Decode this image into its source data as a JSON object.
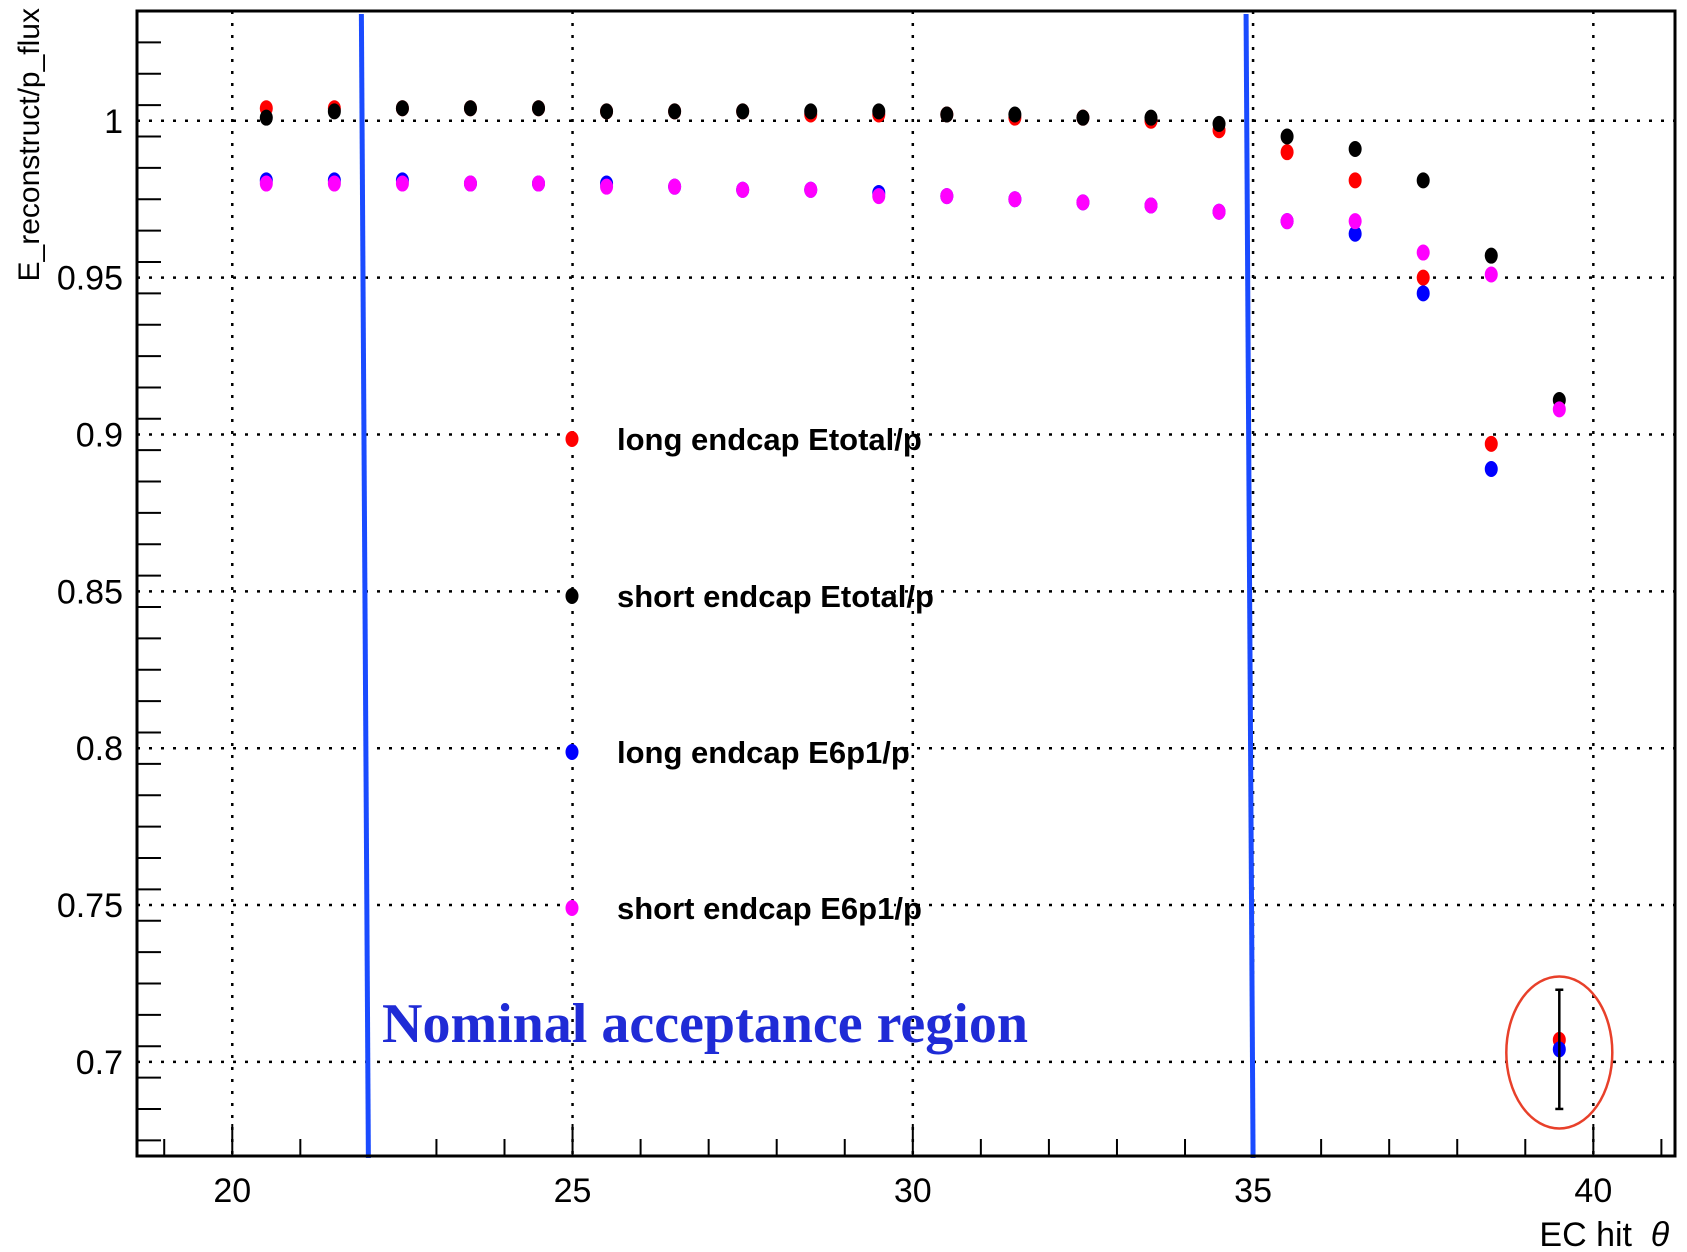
{
  "chart_data": {
    "type": "scatter",
    "title": "",
    "xlabel": "EC hit",
    "xlabel_symbol": "θ",
    "ylabel": "E_reconstruct/p_flux",
    "xlim": [
      18.6,
      41.2
    ],
    "ylim": [
      0.67,
      1.035
    ],
    "x_ticks": [
      "20",
      "25",
      "30",
      "35",
      "40"
    ],
    "y_ticks": [
      "0.7",
      "0.75",
      "0.8",
      "0.85",
      "0.9",
      "0.95",
      "1"
    ],
    "grid": true,
    "legend_position": "center",
    "series": [
      {
        "name": "long endcap Etotal/p",
        "color": "#ff0000",
        "x": [
          20.5,
          21.5,
          22.5,
          23.5,
          24.5,
          25.5,
          26.5,
          27.5,
          28.5,
          29.5,
          30.5,
          31.5,
          32.5,
          33.5,
          34.5,
          35.5,
          36.5,
          37.5,
          38.5,
          39.5
        ],
        "y": [
          1.004,
          1.004,
          1.004,
          1.004,
          1.004,
          1.003,
          1.003,
          1.003,
          1.002,
          1.002,
          1.002,
          1.001,
          1.001,
          1.0,
          0.997,
          0.99,
          0.981,
          0.95,
          0.897,
          0.707
        ]
      },
      {
        "name": "short endcap Etotal/p",
        "color": "#000000",
        "x": [
          20.5,
          21.5,
          22.5,
          23.5,
          24.5,
          25.5,
          26.5,
          27.5,
          28.5,
          29.5,
          30.5,
          31.5,
          32.5,
          33.5,
          34.5,
          35.5,
          36.5,
          37.5,
          38.5,
          39.5
        ],
        "y": [
          1.001,
          1.003,
          1.004,
          1.004,
          1.004,
          1.003,
          1.003,
          1.003,
          1.003,
          1.003,
          1.002,
          1.002,
          1.001,
          1.001,
          0.999,
          0.995,
          0.991,
          0.981,
          0.957,
          0.911
        ]
      },
      {
        "name": "long endcap E6p1/p",
        "color": "#0000ff",
        "x": [
          20.5,
          21.5,
          22.5,
          23.5,
          24.5,
          25.5,
          26.5,
          27.5,
          28.5,
          29.5,
          30.5,
          31.5,
          32.5,
          33.5,
          34.5,
          35.5,
          36.5,
          37.5,
          38.5,
          39.5
        ],
        "y": [
          0.981,
          0.981,
          0.981,
          0.98,
          0.98,
          0.98,
          0.979,
          0.978,
          0.978,
          0.977,
          0.976,
          0.975,
          0.974,
          0.973,
          0.971,
          0.968,
          0.964,
          0.945,
          0.889,
          0.704
        ]
      },
      {
        "name": "short endcap E6p1/p",
        "color": "#ff00ff",
        "x": [
          20.5,
          21.5,
          22.5,
          23.5,
          24.5,
          25.5,
          26.5,
          27.5,
          28.5,
          29.5,
          30.5,
          31.5,
          32.5,
          33.5,
          34.5,
          35.5,
          36.5,
          37.5,
          38.5,
          39.5
        ],
        "y": [
          0.98,
          0.98,
          0.98,
          0.98,
          0.98,
          0.979,
          0.979,
          0.978,
          0.978,
          0.976,
          0.976,
          0.975,
          0.974,
          0.973,
          0.971,
          0.968,
          0.968,
          0.958,
          0.951,
          0.908
        ]
      }
    ],
    "error_bar": {
      "x": 39.5,
      "y_low": 0.685,
      "y_high": 0.723
    },
    "acceptance_lines": {
      "x_start": 22,
      "x_end": 35,
      "color": "#1a4bff"
    },
    "annotation": {
      "text": "Nominal acceptance region",
      "color": "#1f2bd6"
    },
    "highlight_ellipse": {
      "x": 39.5,
      "y": 0.703,
      "color": "#e8402a"
    }
  }
}
